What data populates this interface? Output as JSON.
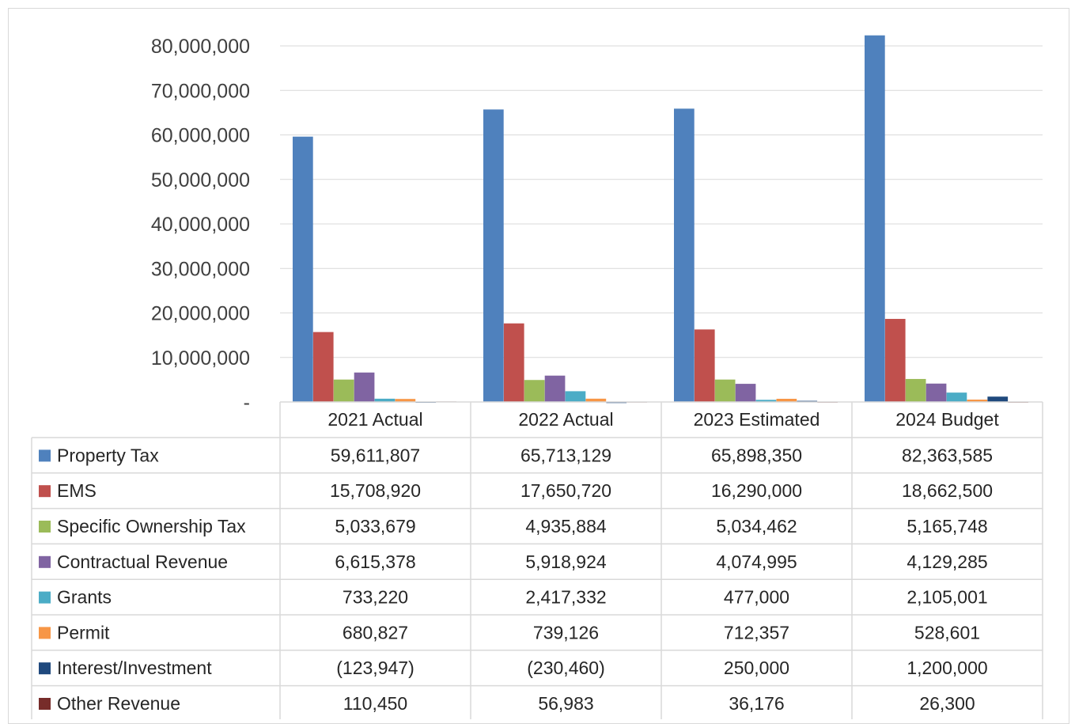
{
  "chart_data": {
    "type": "bar",
    "categories": [
      "2021 Actual",
      "2022 Actual",
      "2023 Estimated",
      "2024 Budget"
    ],
    "series": [
      {
        "name": "Property Tax",
        "color": "#4f81bd",
        "values": [
          59611807,
          65713129,
          65898350,
          82363585
        ],
        "labels": [
          "59,611,807",
          "65,713,129",
          "65,898,350",
          "82,363,585"
        ]
      },
      {
        "name": "EMS",
        "color": "#c0504d",
        "values": [
          15708920,
          17650720,
          16290000,
          18662500
        ],
        "labels": [
          "15,708,920",
          "17,650,720",
          "16,290,000",
          "18,662,500"
        ]
      },
      {
        "name": "Specific Ownership Tax",
        "color": "#9bbb59",
        "values": [
          5033679,
          4935884,
          5034462,
          5165748
        ],
        "labels": [
          "5,033,679",
          "4,935,884",
          "5,034,462",
          "5,165,748"
        ]
      },
      {
        "name": "Contractual Revenue",
        "color": "#8064a2",
        "values": [
          6615378,
          5918924,
          4074995,
          4129285
        ],
        "labels": [
          "6,615,378",
          "5,918,924",
          "4,074,995",
          "4,129,285"
        ]
      },
      {
        "name": "Grants",
        "color": "#4bacc6",
        "values": [
          733220,
          2417332,
          477000,
          2105001
        ],
        "labels": [
          "733,220",
          "2,417,332",
          "477,000",
          "2,105,001"
        ]
      },
      {
        "name": "Permit",
        "color": "#f79646",
        "values": [
          680827,
          739126,
          712357,
          528601
        ],
        "labels": [
          "680,827",
          "739,126",
          "712,357",
          "528,601"
        ]
      },
      {
        "name": "Interest/Investment",
        "color": "#1f497d",
        "values": [
          -123947,
          -230460,
          250000,
          1200000
        ],
        "labels": [
          "(123,947)",
          "(230,460)",
          "250,000",
          "1,200,000"
        ]
      },
      {
        "name": "Other Revenue",
        "color": "#772c2a",
        "values": [
          110450,
          56983,
          36176,
          26300
        ],
        "labels": [
          "110,450",
          "56,983",
          "36,176",
          "26,300"
        ]
      }
    ],
    "yticks": [
      {
        "value": 0,
        "label": "-"
      },
      {
        "value": 10000000,
        "label": "10,000,000"
      },
      {
        "value": 20000000,
        "label": "20,000,000"
      },
      {
        "value": 30000000,
        "label": "30,000,000"
      },
      {
        "value": 40000000,
        "label": "40,000,000"
      },
      {
        "value": 50000000,
        "label": "50,000,000"
      },
      {
        "value": 60000000,
        "label": "60,000,000"
      },
      {
        "value": 70000000,
        "label": "70,000,000"
      },
      {
        "value": 80000000,
        "label": "80,000,000"
      }
    ],
    "ylim": [
      0,
      80000000
    ],
    "grid": true,
    "legend": "data-table",
    "title": "",
    "xlabel": "",
    "ylabel": ""
  }
}
